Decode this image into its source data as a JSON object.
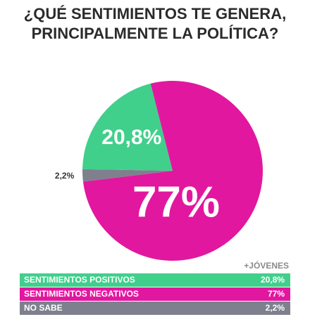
{
  "chart_data": {
    "type": "pie",
    "title": "¿QUÉ SENTIMIENTOS TE GENERA, PRINCIPALMENTE LA POLÍTICA?",
    "annotation": "+JÓVENES",
    "categories": [
      "SENTIMIENTOS POSITIVOS",
      "SENTIMIENTOS NEGATIVOS",
      "NO SABE"
    ],
    "values": [
      20.8,
      77,
      2.2
    ],
    "value_labels": [
      "20,8%",
      "77%",
      "2,2%"
    ],
    "colors": [
      "#41cf8c",
      "#e2179f",
      "#7e808e"
    ]
  }
}
